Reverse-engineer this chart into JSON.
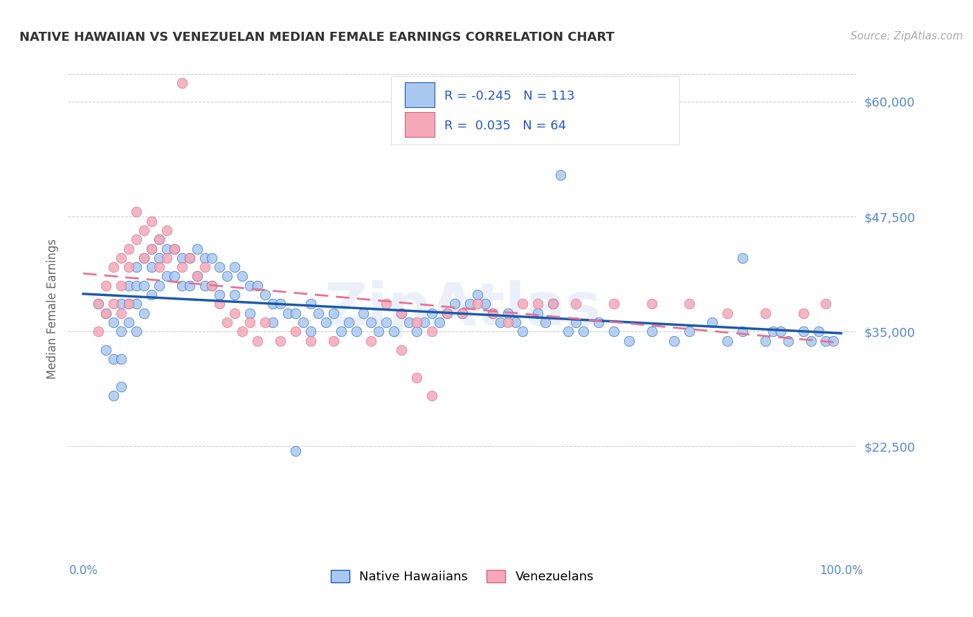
{
  "title": "NATIVE HAWAIIAN VS VENEZUELAN MEDIAN FEMALE EARNINGS CORRELATION CHART",
  "source": "Source: ZipAtlas.com",
  "ylabel": "Median Female Earnings",
  "yticks": [
    22500,
    35000,
    47500,
    60000
  ],
  "ytick_labels": [
    "$22,500",
    "$35,000",
    "$47,500",
    "$60,000"
  ],
  "ymin": 12000,
  "ymax": 63000,
  "xmin": -0.02,
  "xmax": 1.02,
  "hawaiian_color": "#a8c8f0",
  "venezuelan_color": "#f4a8b8",
  "hawaiian_line_color": "#1a5aaa",
  "venezuelan_line_color": "#e87090",
  "background_color": "#ffffff",
  "grid_color": "#cccccc",
  "legend_R_hawaiian": "-0.245",
  "legend_N_hawaiian": "113",
  "legend_R_venezuelan": "0.035",
  "legend_N_venezuelan": "64",
  "title_color": "#333333",
  "axis_label_color": "#5588cc",
  "watermark": "ZipAtlas",
  "hawaiian_x": [
    0.02,
    0.03,
    0.03,
    0.04,
    0.04,
    0.04,
    0.05,
    0.05,
    0.05,
    0.05,
    0.06,
    0.06,
    0.06,
    0.07,
    0.07,
    0.07,
    0.07,
    0.08,
    0.08,
    0.08,
    0.09,
    0.09,
    0.09,
    0.1,
    0.1,
    0.1,
    0.11,
    0.11,
    0.12,
    0.12,
    0.13,
    0.13,
    0.14,
    0.14,
    0.15,
    0.15,
    0.16,
    0.16,
    0.17,
    0.17,
    0.18,
    0.18,
    0.19,
    0.2,
    0.2,
    0.21,
    0.22,
    0.22,
    0.23,
    0.24,
    0.25,
    0.25,
    0.26,
    0.27,
    0.28,
    0.29,
    0.3,
    0.3,
    0.31,
    0.32,
    0.33,
    0.34,
    0.35,
    0.36,
    0.37,
    0.38,
    0.39,
    0.4,
    0.41,
    0.42,
    0.43,
    0.44,
    0.45,
    0.46,
    0.47,
    0.48,
    0.49,
    0.5,
    0.51,
    0.52,
    0.53,
    0.54,
    0.55,
    0.56,
    0.57,
    0.58,
    0.6,
    0.61,
    0.62,
    0.64,
    0.65,
    0.66,
    0.68,
    0.7,
    0.72,
    0.75,
    0.78,
    0.8,
    0.83,
    0.85,
    0.87,
    0.9,
    0.91,
    0.92,
    0.93,
    0.95,
    0.96,
    0.97,
    0.98,
    0.99,
    0.28,
    0.63,
    0.87
  ],
  "hawaiian_y": [
    38000,
    37000,
    33000,
    36000,
    32000,
    28000,
    38000,
    35000,
    32000,
    29000,
    40000,
    38000,
    36000,
    42000,
    40000,
    38000,
    35000,
    43000,
    40000,
    37000,
    44000,
    42000,
    39000,
    45000,
    43000,
    40000,
    44000,
    41000,
    44000,
    41000,
    43000,
    40000,
    43000,
    40000,
    44000,
    41000,
    43000,
    40000,
    43000,
    40000,
    42000,
    39000,
    41000,
    42000,
    39000,
    41000,
    40000,
    37000,
    40000,
    39000,
    38000,
    36000,
    38000,
    37000,
    37000,
    36000,
    38000,
    35000,
    37000,
    36000,
    37000,
    35000,
    36000,
    35000,
    37000,
    36000,
    35000,
    36000,
    35000,
    37000,
    36000,
    35000,
    36000,
    37000,
    36000,
    37000,
    38000,
    37000,
    38000,
    39000,
    38000,
    37000,
    36000,
    37000,
    36000,
    35000,
    37000,
    36000,
    38000,
    35000,
    36000,
    35000,
    36000,
    35000,
    34000,
    35000,
    34000,
    35000,
    36000,
    34000,
    35000,
    34000,
    35000,
    35000,
    34000,
    35000,
    34000,
    35000,
    34000,
    34000,
    22000,
    52000,
    43000
  ],
  "venezuelan_x": [
    0.02,
    0.02,
    0.03,
    0.03,
    0.04,
    0.04,
    0.05,
    0.05,
    0.05,
    0.06,
    0.06,
    0.06,
    0.07,
    0.07,
    0.08,
    0.08,
    0.09,
    0.09,
    0.1,
    0.1,
    0.11,
    0.11,
    0.12,
    0.13,
    0.14,
    0.15,
    0.16,
    0.17,
    0.18,
    0.19,
    0.2,
    0.21,
    0.22,
    0.23,
    0.24,
    0.26,
    0.28,
    0.3,
    0.4,
    0.42,
    0.44,
    0.46,
    0.48,
    0.5,
    0.52,
    0.54,
    0.56,
    0.58,
    0.6,
    0.62,
    0.65,
    0.7,
    0.75,
    0.8,
    0.85,
    0.9,
    0.95,
    0.98,
    0.13,
    0.33,
    0.38,
    0.42,
    0.44,
    0.46
  ],
  "venezuelan_y": [
    38000,
    35000,
    40000,
    37000,
    42000,
    38000,
    43000,
    40000,
    37000,
    44000,
    42000,
    38000,
    48000,
    45000,
    46000,
    43000,
    47000,
    44000,
    45000,
    42000,
    46000,
    43000,
    44000,
    42000,
    43000,
    41000,
    42000,
    40000,
    38000,
    36000,
    37000,
    35000,
    36000,
    34000,
    36000,
    34000,
    35000,
    34000,
    38000,
    37000,
    36000,
    35000,
    37000,
    37000,
    38000,
    37000,
    36000,
    38000,
    38000,
    38000,
    38000,
    38000,
    38000,
    38000,
    37000,
    37000,
    37000,
    38000,
    62000,
    34000,
    34000,
    33000,
    30000,
    28000
  ]
}
